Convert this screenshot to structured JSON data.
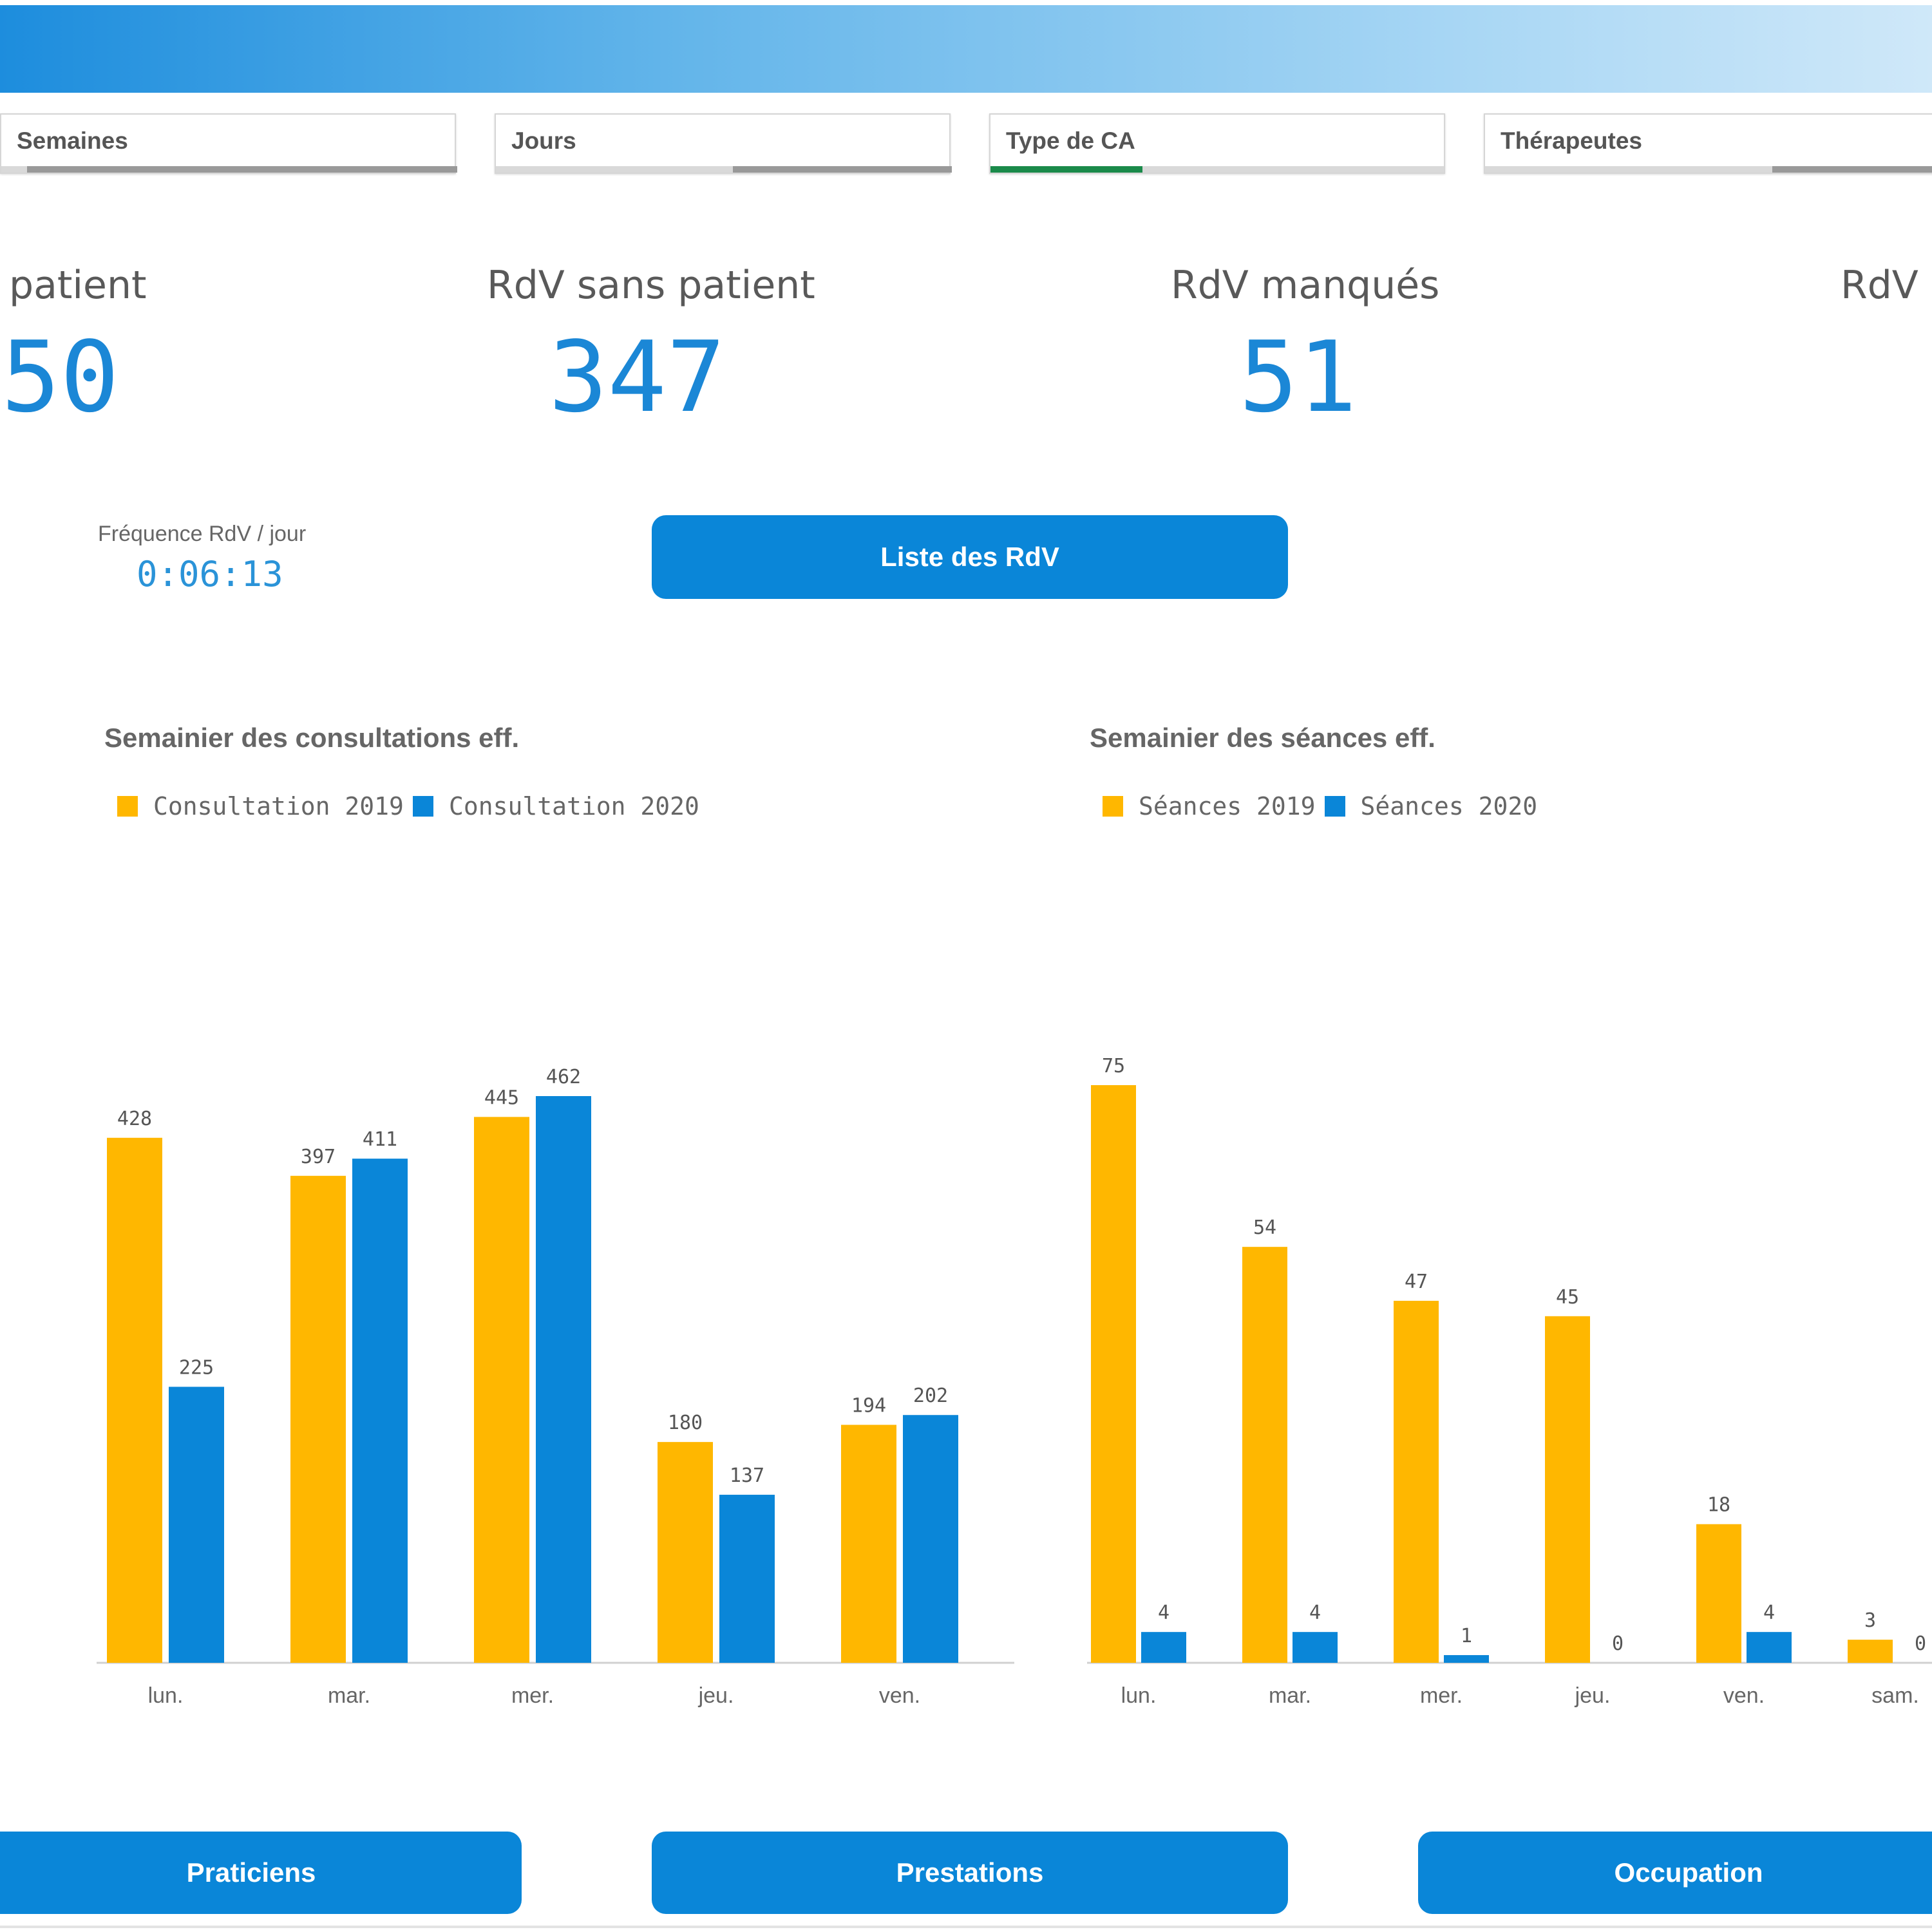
{
  "filters": [
    {
      "label": "Semaines",
      "bar_color": "#999999"
    },
    {
      "label": "Jours",
      "bar_color": "#999999"
    },
    {
      "label": "Type de CA",
      "bar_color": "#1a8a4a"
    },
    {
      "label": "Thérapeutes",
      "bar_color": "#999999"
    }
  ],
  "kpis": [
    {
      "label": "patient",
      "value": "50"
    },
    {
      "label": "RdV sans patient",
      "value": "347"
    },
    {
      "label": "RdV manqués",
      "value": "51"
    },
    {
      "label": "RdV a",
      "value": "("
    }
  ],
  "frequency": {
    "label": "Fréquence RdV / jour",
    "value": "0:06:13"
  },
  "buttons": {
    "liste": "Liste des RdV",
    "praticiens": "Praticiens",
    "prestations": "Prestations",
    "occupation": "Occupation"
  },
  "colors": {
    "accent": "#0a86d8",
    "series_2019": "#ffb700",
    "series_2020": "#0a86d8"
  },
  "chart_data": [
    {
      "type": "bar",
      "title": "Semainier des consultations eff.",
      "categories": [
        "lun.",
        "mar.",
        "mer.",
        "jeu.",
        "ven."
      ],
      "series": [
        {
          "name": "Consultation 2019",
          "color": "#ffb700",
          "values": [
            428,
            397,
            445,
            180,
            194
          ]
        },
        {
          "name": "Consultation 2020",
          "color": "#0a86d8",
          "values": [
            225,
            411,
            462,
            137,
            202
          ]
        }
      ],
      "ylim": [
        0,
        462
      ],
      "legend": "top-left",
      "grid": false
    },
    {
      "type": "bar",
      "title": "Semainier des séances eff.",
      "categories": [
        "lun.",
        "mar.",
        "mer.",
        "jeu.",
        "ven.",
        "sam."
      ],
      "series": [
        {
          "name": "Séances 2019",
          "color": "#ffb700",
          "values": [
            75,
            54,
            47,
            45,
            18,
            3
          ]
        },
        {
          "name": "Séances 2020",
          "color": "#0a86d8",
          "values": [
            4,
            4,
            1,
            0,
            4,
            0
          ]
        }
      ],
      "ylim": [
        0,
        75
      ],
      "legend": "top-left",
      "grid": false
    }
  ]
}
